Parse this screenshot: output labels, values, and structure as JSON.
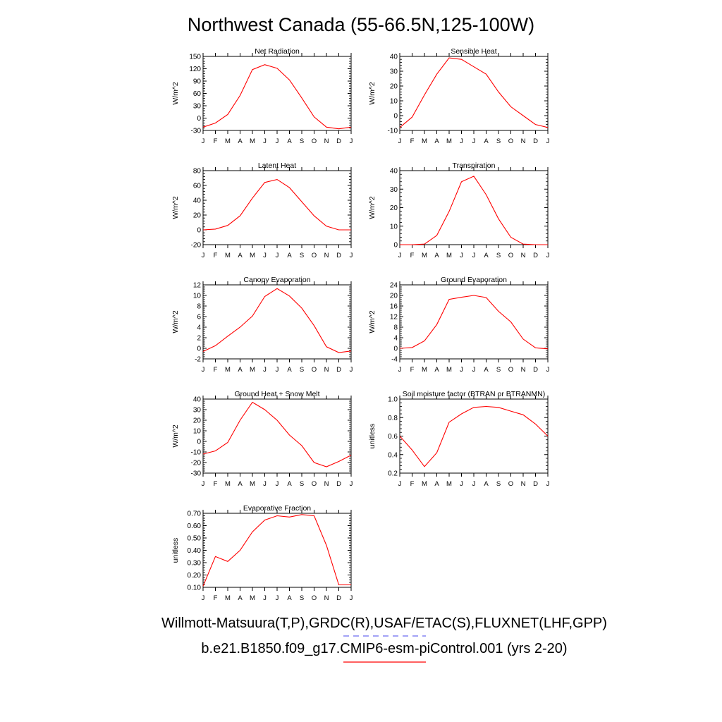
{
  "title": "Northwest Canada (55-66.5N,125-100W)",
  "legend": {
    "obs_label": "Willmott-Matsuura(T,P),GRDC(R),USAF/ETAC(S),FLUXNET(LHF,GPP)",
    "obs_color": "#6a6af0",
    "model_label": "b.e21.B1850.f09_g17.CMIP6-esm-piControl.001 (yrs 2-20)",
    "model_color": "#ff0000"
  },
  "chart_data": [
    {
      "type": "line",
      "title": "Net Radiation",
      "ylabel": "W/m^2",
      "categories": [
        "J",
        "F",
        "M",
        "A",
        "M",
        "J",
        "J",
        "A",
        "S",
        "O",
        "N",
        "D",
        "J"
      ],
      "ylim": [
        -30,
        150
      ],
      "yticks": [
        -30,
        0,
        30,
        60,
        90,
        120,
        150
      ],
      "ytick_labels": [
        "-30",
        "0",
        "30",
        "60",
        "90",
        "120",
        "150"
      ],
      "series": [
        {
          "color": "#ff0000",
          "values": [
            -22,
            -12,
            9,
            55,
            118,
            130,
            121,
            93,
            49,
            3,
            -22,
            -26,
            -22
          ]
        }
      ]
    },
    {
      "type": "line",
      "title": "Sensible Heat",
      "ylabel": "W/m^2",
      "categories": [
        "J",
        "F",
        "M",
        "A",
        "M",
        "J",
        "J",
        "A",
        "S",
        "O",
        "N",
        "D",
        "J"
      ],
      "ylim": [
        -10,
        40
      ],
      "yticks": [
        -10,
        0,
        10,
        20,
        30,
        40
      ],
      "ytick_labels": [
        "-10",
        "0",
        "10",
        "20",
        "30",
        "40"
      ],
      "series": [
        {
          "color": "#ff0000",
          "values": [
            -8,
            -1,
            14,
            28,
            39,
            38,
            33,
            28,
            16,
            6,
            0,
            -6,
            -8
          ]
        }
      ]
    },
    {
      "type": "line",
      "title": "Latent Heat",
      "ylabel": "W/m^2",
      "categories": [
        "J",
        "F",
        "M",
        "A",
        "M",
        "J",
        "J",
        "A",
        "S",
        "O",
        "N",
        "D",
        "J"
      ],
      "ylim": [
        -20,
        80
      ],
      "yticks": [
        -20,
        0,
        20,
        40,
        60,
        80
      ],
      "ytick_labels": [
        "-20",
        "0",
        "20",
        "40",
        "60",
        "80"
      ],
      "series": [
        {
          "color": "#ff0000",
          "values": [
            0,
            1,
            6,
            19,
            43,
            64,
            68,
            57,
            38,
            19,
            5,
            0,
            0
          ]
        }
      ]
    },
    {
      "type": "line",
      "title": "Transpiration",
      "ylabel": "W/m^2",
      "categories": [
        "J",
        "F",
        "M",
        "A",
        "M",
        "J",
        "J",
        "A",
        "S",
        "O",
        "N",
        "D",
        "J"
      ],
      "ylim": [
        0,
        40
      ],
      "yticks": [
        0,
        10,
        20,
        30,
        40
      ],
      "ytick_labels": [
        "0",
        "10",
        "20",
        "30",
        "40"
      ],
      "series": [
        {
          "color": "#ff0000",
          "values": [
            0,
            0,
            0.3,
            5,
            18,
            34,
            37,
            27,
            14,
            4,
            0.3,
            0,
            0
          ]
        }
      ]
    },
    {
      "type": "line",
      "title": "Canopy Evaporation",
      "ylabel": "W/m^2",
      "categories": [
        "J",
        "F",
        "M",
        "A",
        "M",
        "J",
        "J",
        "A",
        "S",
        "O",
        "N",
        "D",
        "J"
      ],
      "ylim": [
        -2,
        12
      ],
      "yticks": [
        -2,
        0,
        2,
        4,
        6,
        8,
        10,
        12
      ],
      "ytick_labels": [
        "-2",
        "0",
        "2",
        "4",
        "6",
        "8",
        "10",
        "12"
      ],
      "series": [
        {
          "color": "#ff0000",
          "values": [
            -0.6,
            0.5,
            2.3,
            4.0,
            6.1,
            9.8,
            11.3,
            9.9,
            7.6,
            4.3,
            0.3,
            -0.8,
            -0.5
          ]
        }
      ]
    },
    {
      "type": "line",
      "title": "Ground Evaporation",
      "ylabel": "W/m^2",
      "categories": [
        "J",
        "F",
        "M",
        "A",
        "M",
        "J",
        "J",
        "A",
        "S",
        "O",
        "N",
        "D",
        "J"
      ],
      "ylim": [
        -4,
        24
      ],
      "yticks": [
        -4,
        0,
        4,
        8,
        12,
        16,
        20,
        24
      ],
      "ytick_labels": [
        "-4",
        "0",
        "4",
        "8",
        "12",
        "16",
        "20",
        "24"
      ],
      "series": [
        {
          "color": "#ff0000",
          "values": [
            0,
            0.3,
            2.8,
            9,
            18.5,
            19.3,
            20,
            19.2,
            14,
            10,
            3.5,
            0.2,
            -0.2
          ]
        }
      ]
    },
    {
      "type": "line",
      "title": "Ground Heat + Snow Melt",
      "ylabel": "W/m^2",
      "categories": [
        "J",
        "F",
        "M",
        "A",
        "M",
        "J",
        "J",
        "A",
        "S",
        "O",
        "N",
        "D",
        "J"
      ],
      "ylim": [
        -30,
        40
      ],
      "yticks": [
        -30,
        -20,
        -10,
        0,
        10,
        20,
        30,
        40
      ],
      "ytick_labels": [
        "-30",
        "-20",
        "-10",
        "0",
        "10",
        "20",
        "30",
        "40"
      ],
      "series": [
        {
          "color": "#ff0000",
          "values": [
            -12,
            -9,
            -1,
            20,
            37,
            30,
            20,
            6,
            -4,
            -20,
            -24,
            -19,
            -13
          ]
        }
      ]
    },
    {
      "type": "line",
      "title": "Soil moisture factor (BTRAN or BTRANMN)",
      "ylabel": "unitless",
      "categories": [
        "J",
        "F",
        "M",
        "A",
        "M",
        "J",
        "J",
        "A",
        "S",
        "O",
        "N",
        "D",
        "J"
      ],
      "ylim": [
        0.2,
        1.0
      ],
      "yticks": [
        0.2,
        0.4,
        0.6,
        0.8,
        1.0
      ],
      "ytick_labels": [
        "0.2",
        "0.4",
        "0.6",
        "0.8",
        "1.0"
      ],
      "series": [
        {
          "color": "#ff0000",
          "values": [
            0.6,
            0.45,
            0.27,
            0.42,
            0.75,
            0.84,
            0.91,
            0.92,
            0.91,
            0.87,
            0.83,
            0.73,
            0.6
          ]
        }
      ]
    },
    {
      "type": "line",
      "title": "Evaporative Fraction",
      "ylabel": "unitless",
      "categories": [
        "J",
        "F",
        "M",
        "A",
        "M",
        "J",
        "J",
        "A",
        "S",
        "O",
        "N",
        "D",
        "J"
      ],
      "ylim": [
        0.1,
        0.7
      ],
      "yticks": [
        0.1,
        0.2,
        0.3,
        0.4,
        0.5,
        0.6,
        0.7
      ],
      "ytick_labels": [
        "0.10",
        "0.20",
        "0.30",
        "0.40",
        "0.50",
        "0.60",
        "0.70"
      ],
      "series": [
        {
          "color": "#ff0000",
          "values": [
            0.11,
            0.35,
            0.31,
            0.4,
            0.55,
            0.645,
            0.68,
            0.67,
            0.69,
            0.68,
            0.44,
            0.12,
            0.12
          ]
        }
      ]
    }
  ]
}
